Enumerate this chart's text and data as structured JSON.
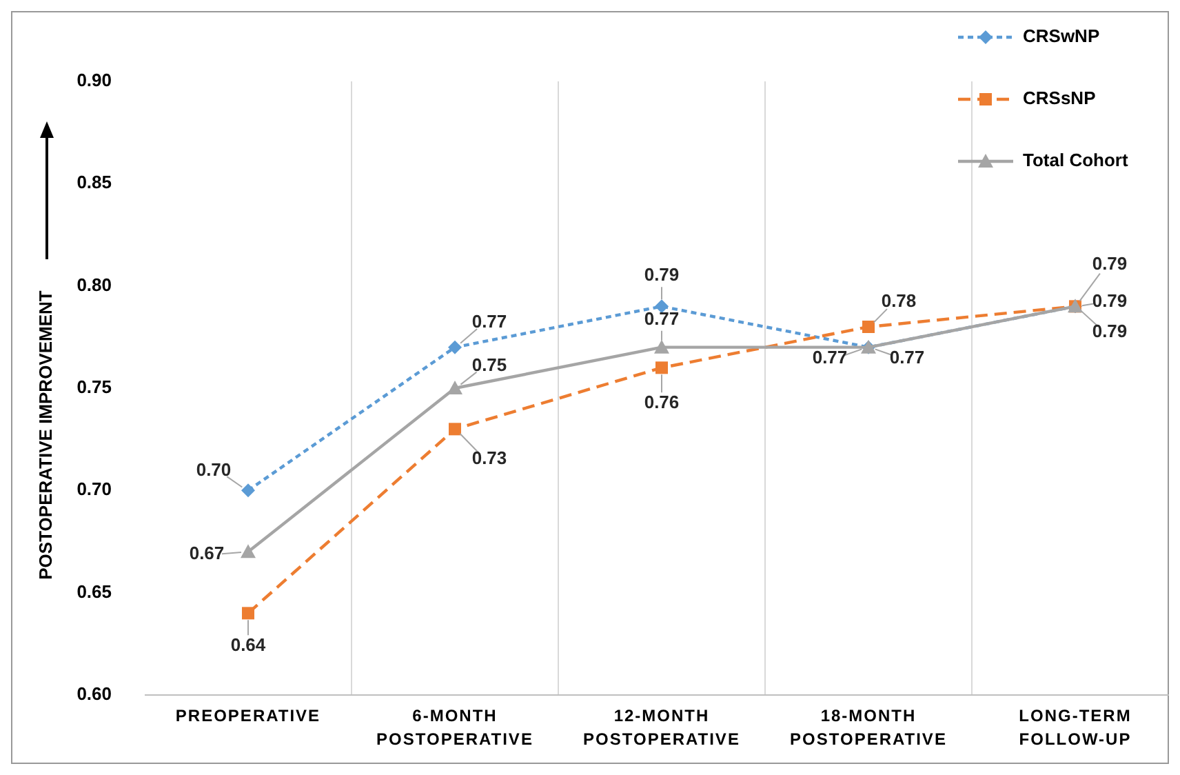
{
  "chart_data": {
    "type": "line",
    "ylabel": "POSTOPERATIVE IMPROVEMENT",
    "categories": [
      "PREOPERATIVE",
      "6-MONTH POSTOPERATIVE",
      "12-MONTH POSTOPERATIVE",
      "18-MONTH POSTOPERATIVE",
      "LONG-TERM FOLLOW-UP"
    ],
    "series": [
      {
        "name": "CRSwNP",
        "color": "#5b9bd5",
        "values": [
          0.7,
          0.77,
          0.79,
          0.77,
          0.79
        ],
        "value_labels": [
          "0.70",
          "0.77",
          "0.79",
          "0.77",
          "0.79"
        ],
        "marker": "diamond",
        "line_style": "dotted"
      },
      {
        "name": "CRSsNP",
        "color": "#ed7d31",
        "values": [
          0.64,
          0.73,
          0.76,
          0.78,
          0.79
        ],
        "value_labels": [
          "0.64",
          "0.73",
          "0.76",
          "0.78",
          "0.79"
        ],
        "marker": "square",
        "line_style": "dashed"
      },
      {
        "name": "Total Cohort",
        "color": "#a5a5a5",
        "values": [
          0.67,
          0.75,
          0.77,
          0.77,
          0.79
        ],
        "value_labels": [
          "0.67",
          "0.75",
          "0.77",
          "0.77",
          "0.79"
        ],
        "marker": "triangle",
        "line_style": "solid"
      }
    ],
    "ylim": [
      0.6,
      0.9
    ],
    "yticks": [
      {
        "value": 0.6,
        "label": "0.60"
      },
      {
        "value": 0.65,
        "label": "0.65"
      },
      {
        "value": 0.7,
        "label": "0.70"
      },
      {
        "value": 0.75,
        "label": "0.75"
      },
      {
        "value": 0.8,
        "label": "0.80"
      },
      {
        "value": 0.85,
        "label": "0.85"
      },
      {
        "value": 0.9,
        "label": "0.90"
      }
    ],
    "grid": "x",
    "legend": "top right"
  }
}
